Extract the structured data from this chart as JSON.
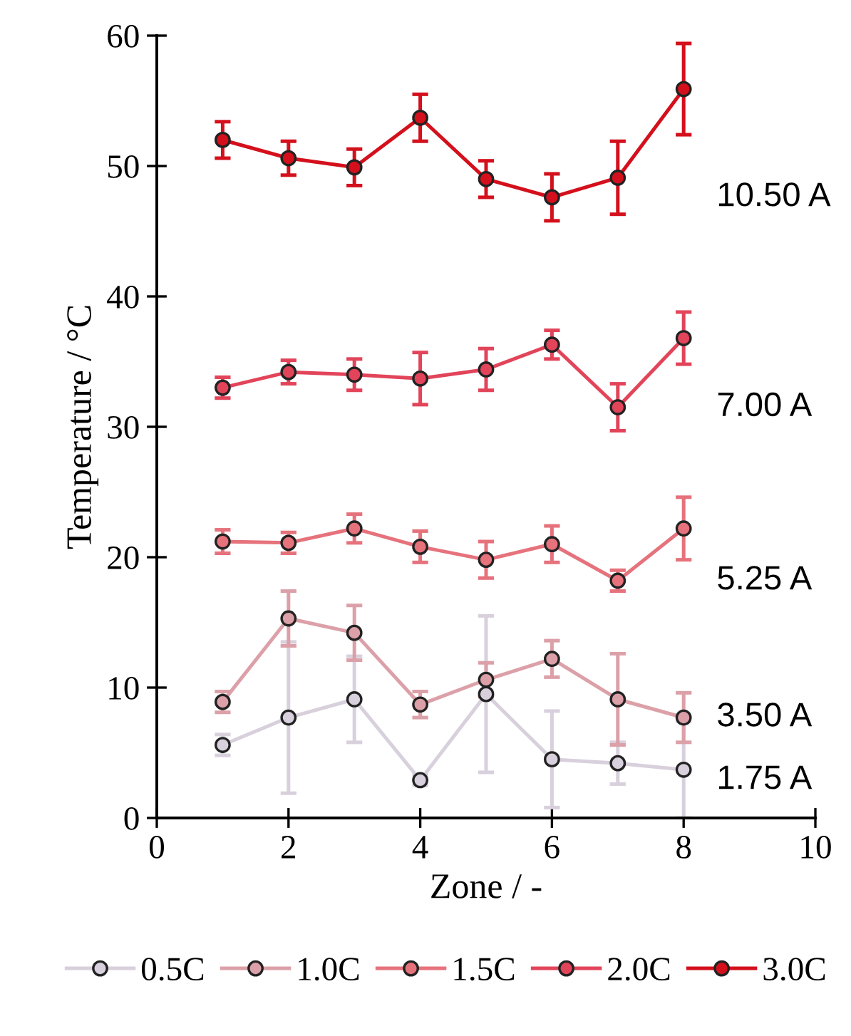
{
  "chart_data": {
    "type": "line",
    "xlabel": "Zone / -",
    "ylabel": "Temperature / °C",
    "x": [
      1,
      2,
      3,
      4,
      5,
      6,
      7,
      8
    ],
    "xlim": [
      0,
      10
    ],
    "xticks": [
      0,
      2,
      4,
      6,
      8,
      10
    ],
    "ylim": [
      0,
      60
    ],
    "yticks": [
      0,
      10,
      20,
      30,
      40,
      50,
      60
    ],
    "grid": false,
    "legend": "bottom",
    "marker": "circle",
    "line_style": "solid",
    "series": [
      {
        "name": "0.5C",
        "color": "#d8d0dc",
        "values": [
          5.6,
          7.7,
          9.1,
          2.9,
          9.5,
          4.5,
          4.2,
          3.7
        ],
        "errors": [
          0.8,
          5.8,
          3.3,
          0.4,
          6.0,
          3.7,
          1.6,
          3.7
        ]
      },
      {
        "name": "1.0C",
        "color": "#dca0a8",
        "values": [
          8.9,
          15.3,
          14.2,
          8.7,
          10.6,
          12.2,
          9.1,
          7.7
        ],
        "errors": [
          0.8,
          2.1,
          2.1,
          1.0,
          1.3,
          1.4,
          3.5,
          1.9
        ]
      },
      {
        "name": "1.5C",
        "color": "#e6727c",
        "values": [
          21.2,
          21.1,
          22.2,
          20.8,
          19.8,
          21.0,
          18.2,
          22.2
        ],
        "errors": [
          0.9,
          0.8,
          1.1,
          1.2,
          1.4,
          1.4,
          0.8,
          2.4
        ]
      },
      {
        "name": "2.0C",
        "color": "#e2445a",
        "values": [
          33.0,
          34.2,
          34.0,
          33.7,
          34.4,
          36.3,
          31.5,
          36.8
        ],
        "errors": [
          0.8,
          0.9,
          1.2,
          2.0,
          1.6,
          1.1,
          1.8,
          2.0
        ]
      },
      {
        "name": "3.0C",
        "color": "#d4101c",
        "values": [
          52.0,
          50.6,
          49.9,
          53.7,
          49.0,
          47.6,
          49.1,
          55.9
        ],
        "errors": [
          1.4,
          1.3,
          1.4,
          1.8,
          1.4,
          1.8,
          2.8,
          3.5
        ]
      }
    ],
    "annotations": [
      "10.50 A",
      "7.00 A",
      "5.25 A",
      "3.50 A",
      "1.75 A"
    ]
  }
}
